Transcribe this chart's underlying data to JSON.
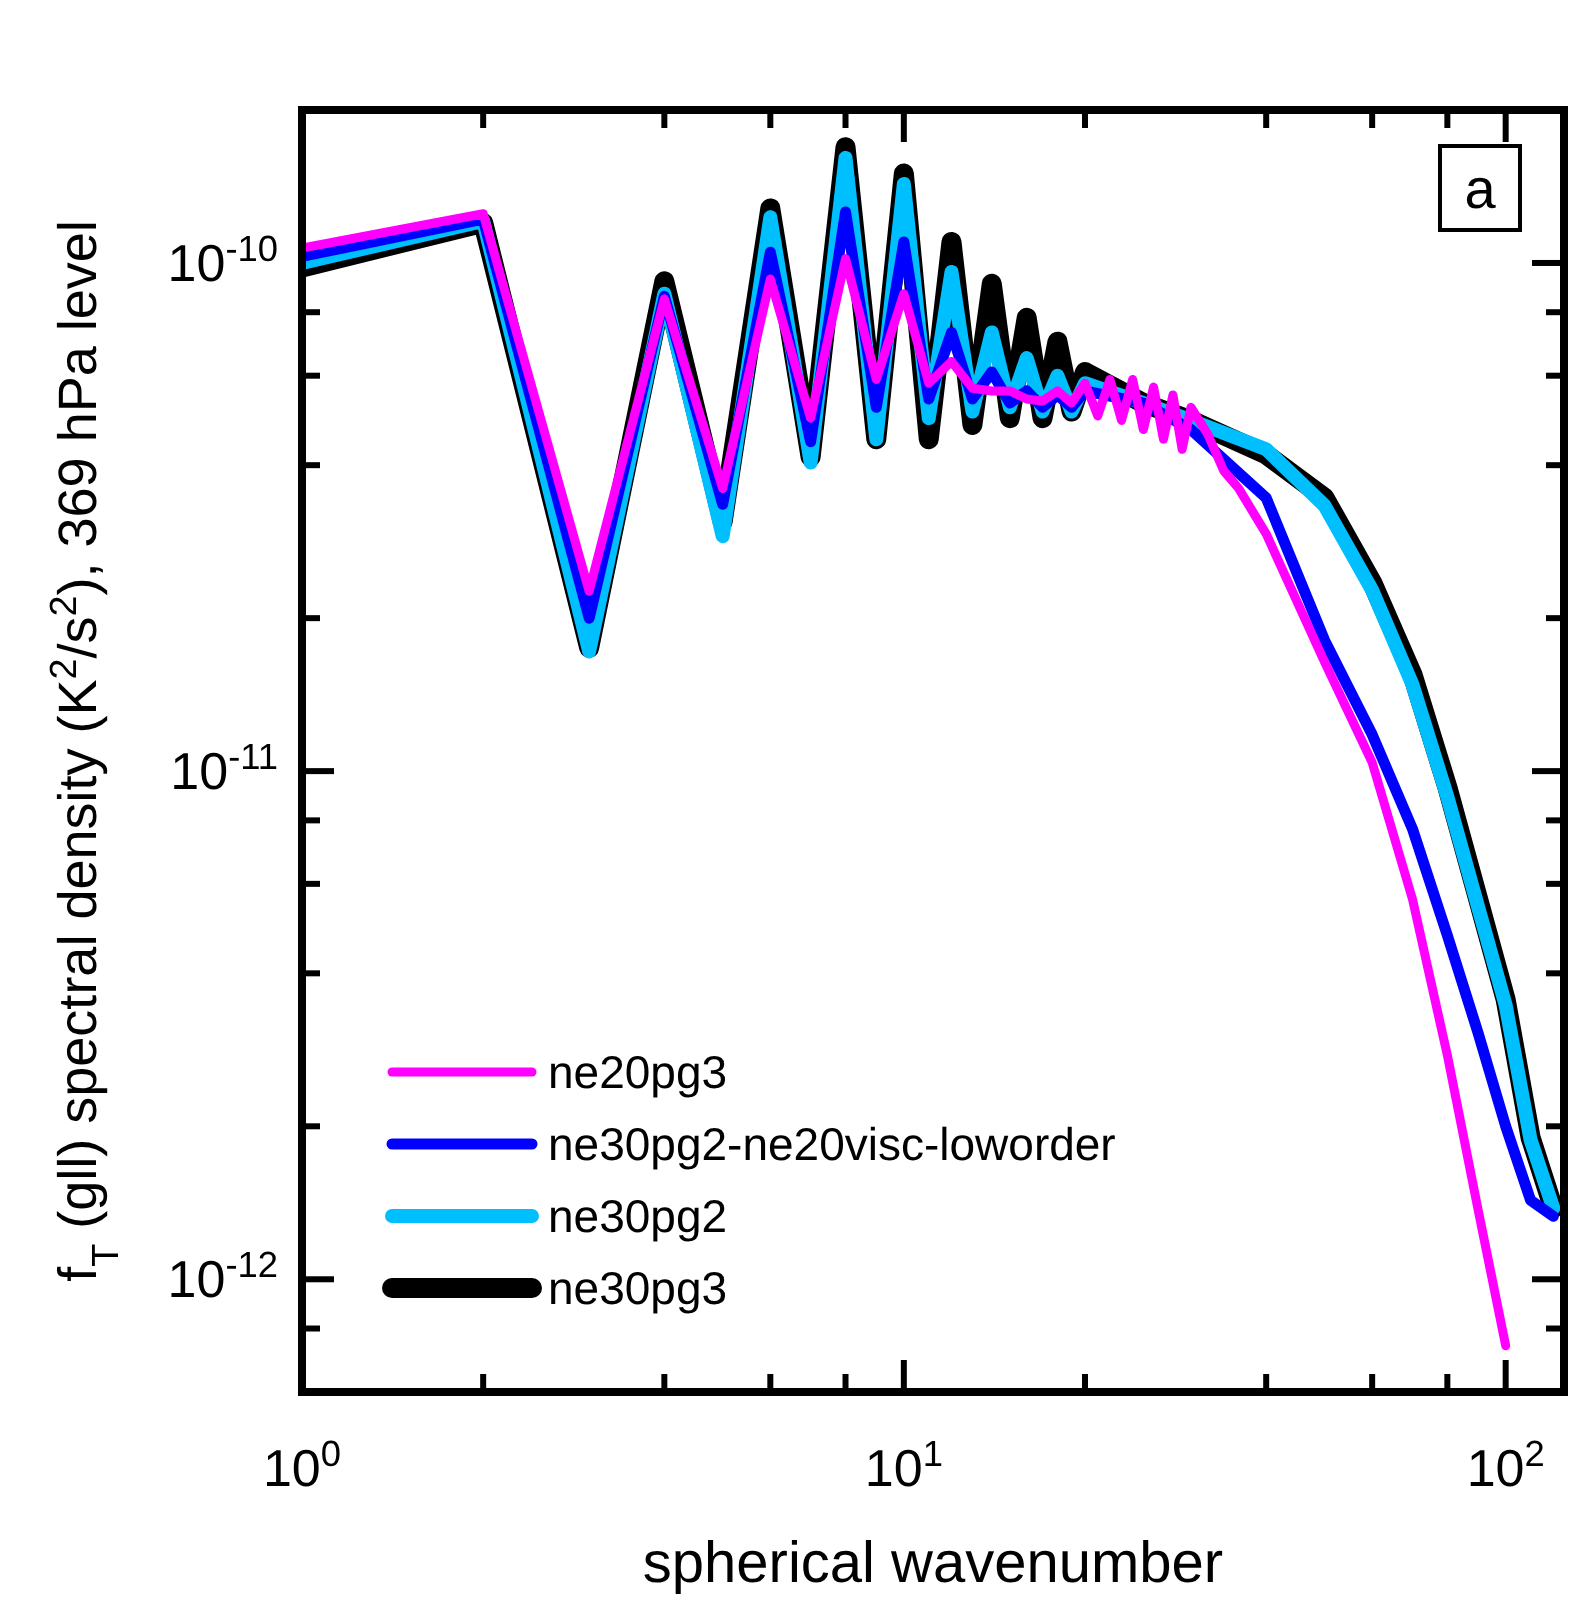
{
  "chart_data": {
    "type": "line",
    "xlabel": "spherical wavenumber",
    "ylabel": "f$_{T}$ (gll) spectral density (K$^{2}$/s$^{2}$), 369 hPa level",
    "annotations": [
      "a"
    ],
    "log": "xy",
    "legend": "bottom left",
    "line_style": "solid",
    "marker": "none",
    "xlim": [
      1,
      125
    ],
    "ylim": [
      6e-13,
      2e-10
    ],
    "xticks": [
      {
        "value": 1,
        "label": "10$^{0}$"
      },
      {
        "value": 2,
        "label": null
      },
      {
        "value": 4,
        "label": null
      },
      {
        "value": 6,
        "label": null
      },
      {
        "value": 8,
        "label": null
      },
      {
        "value": 10,
        "label": "10$^{1}$"
      },
      {
        "value": 20,
        "label": null
      },
      {
        "value": 40,
        "label": null
      },
      {
        "value": 60,
        "label": null
      },
      {
        "value": 80,
        "label": null
      },
      {
        "value": 100,
        "label": "10$^{2}$"
      }
    ],
    "yticks": [
      {
        "value": 8e-13,
        "label": null
      },
      {
        "value": 1e-12,
        "label": "10$^{-12}$"
      },
      {
        "value": 2e-12,
        "label": null
      },
      {
        "value": 4e-12,
        "label": null
      },
      {
        "value": 6e-12,
        "label": null
      },
      {
        "value": 8e-12,
        "label": null
      },
      {
        "value": 1e-11,
        "label": "10$^{-11}$"
      },
      {
        "value": 2e-11,
        "label": null
      },
      {
        "value": 4e-11,
        "label": null
      },
      {
        "value": 6e-11,
        "label": null
      },
      {
        "value": 8e-11,
        "label": null
      },
      {
        "value": 1e-10,
        "label": "10$^{-10}$"
      },
      {
        "value": 2e-10,
        "label": null
      }
    ],
    "series": [
      {
        "name": "ne20pg3",
        "color": "#ff00ff",
        "x": [
          1,
          2,
          3,
          4,
          5,
          6,
          7,
          8,
          9,
          10,
          11,
          12,
          13,
          14,
          15,
          16,
          17,
          18,
          19,
          20,
          21,
          22,
          23,
          24,
          25,
          26,
          27,
          28,
          29,
          30,
          32,
          34,
          36,
          40,
          50,
          60,
          70,
          80,
          90,
          100
        ],
        "values": [
          1.07e-10,
          1.25e-10,
          2.26e-11,
          8.5e-11,
          3.6e-11,
          9.3e-11,
          4.95e-11,
          1.02e-10,
          5.9e-11,
          8.7e-11,
          5.8e-11,
          6.4e-11,
          5.67e-11,
          5.6e-11,
          5.6e-11,
          5.4e-11,
          5.35e-11,
          5.6e-11,
          5.3e-11,
          5.8e-11,
          5e-11,
          5.9e-11,
          4.9e-11,
          5.9e-11,
          4.7e-11,
          5.7e-11,
          4.5e-11,
          5.5e-11,
          4.3e-11,
          5.2e-11,
          4.6e-11,
          3.9e-11,
          3.6e-11,
          2.93e-11,
          1.64e-11,
          1.04e-11,
          5.6e-12,
          2.76e-12,
          1.37e-12,
          7.4e-13
        ]
      },
      {
        "name": "ne30pg2-ne20visc-loworder",
        "color": "#0000ff",
        "x": [
          1,
          2,
          3,
          4,
          5,
          6,
          7,
          8,
          9,
          10,
          11,
          12,
          13,
          14,
          15,
          16,
          17,
          18,
          19,
          20,
          25,
          30,
          40,
          50,
          60,
          70,
          80,
          90,
          100,
          110,
          120
        ],
        "values": [
          1.03e-10,
          1.22e-10,
          2e-11,
          8.6e-11,
          3.35e-11,
          1.05e-10,
          4.45e-11,
          1.26e-10,
          5.2e-11,
          1.1e-10,
          5.4e-11,
          7.3e-11,
          5.4e-11,
          6.1e-11,
          5.3e-11,
          5.6e-11,
          5.2e-11,
          5.5e-11,
          5.2e-11,
          5.6e-11,
          5.3e-11,
          4.7e-11,
          3.45e-11,
          1.81e-11,
          1.18e-11,
          7.7e-12,
          4.75e-12,
          3.05e-12,
          2e-12,
          1.43e-12,
          1.33e-12
        ]
      },
      {
        "name": "ne30pg2",
        "color": "#00bfff",
        "x": [
          1,
          2,
          3,
          4,
          5,
          6,
          7,
          8,
          9,
          10,
          11,
          12,
          13,
          14,
          15,
          16,
          17,
          18,
          19,
          20,
          25,
          30,
          40,
          50,
          60,
          70,
          80,
          90,
          100,
          110,
          120
        ],
        "values": [
          1e-10,
          1.21e-10,
          1.72e-11,
          8.7e-11,
          2.9e-11,
          1.23e-10,
          4.05e-11,
          1.61e-10,
          4.5e-11,
          1.43e-10,
          4.95e-11,
          9.6e-11,
          5.1e-11,
          7.3e-11,
          5.2e-11,
          6.5e-11,
          5.1e-11,
          6e-11,
          5.1e-11,
          5.8e-11,
          5.3e-11,
          4.9e-11,
          4.3e-11,
          3.33e-11,
          2.27e-11,
          1.48e-11,
          8.9e-12,
          5.4e-12,
          3.46e-12,
          1.88e-12,
          1.38e-12
        ]
      },
      {
        "name": "ne30pg3",
        "color": "#000000",
        "x": [
          1,
          2,
          3,
          4,
          5,
          6,
          7,
          8,
          9,
          10,
          11,
          12,
          13,
          14,
          15,
          16,
          17,
          18,
          19,
          20,
          25,
          30,
          40,
          50,
          60,
          70,
          80,
          90,
          100,
          110,
          120
        ],
        "values": [
          9.8e-11,
          1.2e-10,
          1.75e-11,
          9.2e-11,
          3.1e-11,
          1.28e-10,
          4.15e-11,
          1.69e-10,
          4.5e-11,
          1.5e-10,
          4.5e-11,
          1.1e-10,
          4.8e-11,
          9.1e-11,
          4.95e-11,
          7.8e-11,
          4.95e-11,
          7e-11,
          5.1e-11,
          6.1e-11,
          5.3e-11,
          4.9e-11,
          4.2e-11,
          3.45e-11,
          2.35e-11,
          1.55e-11,
          9.3e-12,
          5.6e-12,
          3.55e-12,
          1.9e-12,
          1.38e-12
        ]
      }
    ]
  }
}
